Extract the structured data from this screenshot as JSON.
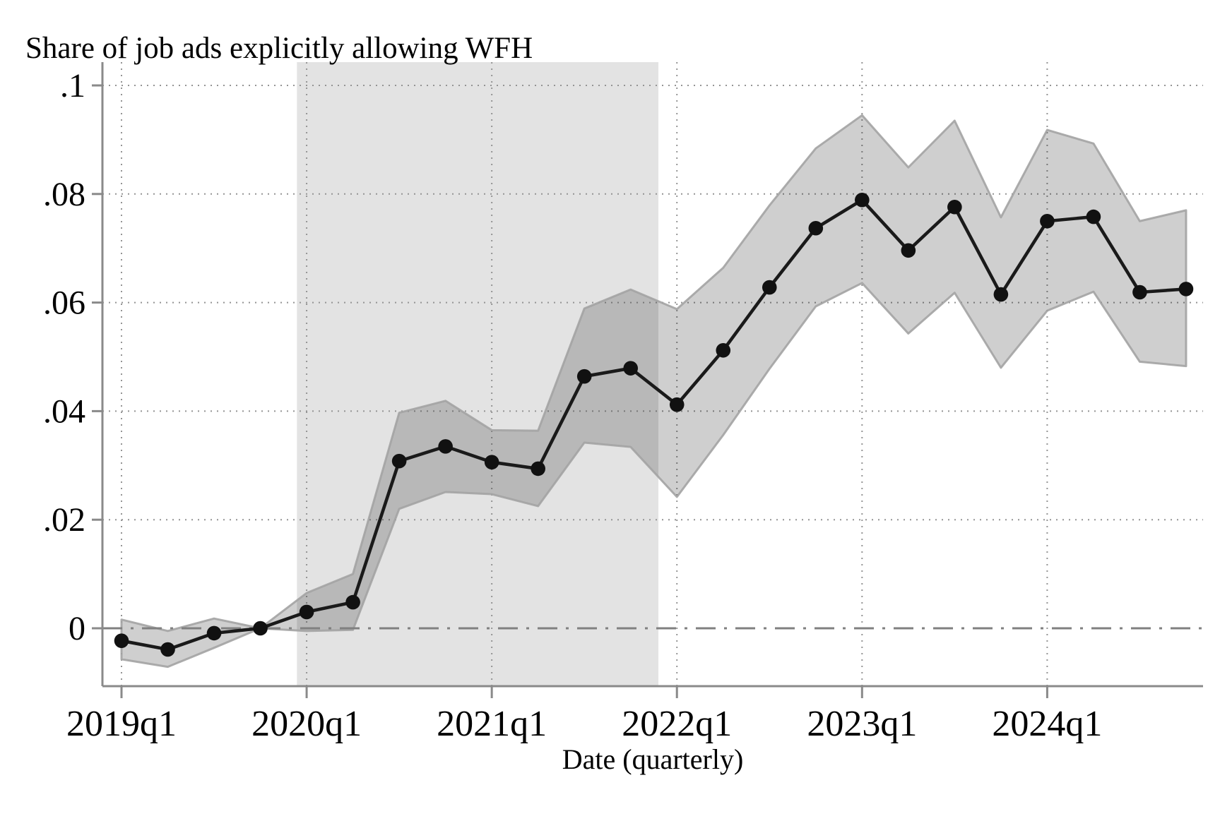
{
  "chart_data": {
    "type": "line",
    "title": "Share of job ads explicitly allowing WFH",
    "xlabel": "Date (quarterly)",
    "ylabel": "",
    "legend": "none",
    "grid": "dotted",
    "ylim": [
      -0.0107,
      0.1043
    ],
    "y_tick_labels": [
      "0",
      ".02",
      ".04",
      ".06",
      ".08",
      ".1"
    ],
    "y_tick_values": [
      0,
      0.02,
      0.04,
      0.06,
      0.08,
      0.1
    ],
    "x_tick_labels": [
      "2019q1",
      "2020q1",
      "2021q1",
      "2022q1",
      "2023q1",
      "2024q1"
    ],
    "x_tick_positions": [
      0,
      4,
      8,
      12,
      16,
      20
    ],
    "categories": [
      "2019q1",
      "2019q2",
      "2019q3",
      "2019q4",
      "2020q1",
      "2020q2",
      "2020q3",
      "2020q4",
      "2021q1",
      "2021q2",
      "2021q3",
      "2021q4",
      "2022q1",
      "2022q2",
      "2022q3",
      "2022q4",
      "2023q1",
      "2023q2",
      "2023q3",
      "2023q4",
      "2024q1",
      "2024q2",
      "2024q3",
      "2024q4"
    ],
    "series": [
      {
        "name": "point_estimate",
        "values": [
          -0.0023,
          -0.0039,
          -0.0009,
          0,
          0.003,
          0.0048,
          0.0308,
          0.0335,
          0.0306,
          0.0294,
          0.0464,
          0.0479,
          0.0412,
          0.0512,
          0.0628,
          0.0737,
          0.0789,
          0.0696,
          0.0776,
          0.0615,
          0.075,
          0.0758,
          0.0619,
          0.0625
        ]
      },
      {
        "name": "ci_upper",
        "values": [
          0.0016,
          -0.0005,
          0.0018,
          0,
          0.0065,
          0.01,
          0.0397,
          0.0419,
          0.0365,
          0.0364,
          0.0589,
          0.0624,
          0.0588,
          0.0664,
          0.0779,
          0.0884,
          0.0945,
          0.0849,
          0.0935,
          0.0757,
          0.0918,
          0.0893,
          0.075,
          0.077
        ]
      },
      {
        "name": "ci_lower",
        "values": [
          -0.0057,
          -0.0071,
          -0.0036,
          0,
          -0.0005,
          -0.0003,
          0.022,
          0.0251,
          0.0247,
          0.0225,
          0.0342,
          0.0334,
          0.0242,
          0.0356,
          0.0478,
          0.0593,
          0.0636,
          0.0543,
          0.0618,
          0.048,
          0.0585,
          0.062,
          0.0491,
          0.0483
        ]
      }
    ],
    "reference_line_y": 0,
    "shaded_region": {
      "from_quarter_index": 3.79,
      "to_quarter_index": 11.6
    },
    "colors": {
      "line": "#1a1a1a",
      "marker": "#111111",
      "ci_fill": "#000000",
      "ci_fill_opacity": 0.19,
      "ci_edge": "#a3a3a3",
      "shaded_band": "#e3e3e3",
      "grid": "#949494",
      "axis": "#8a8a8a",
      "zero_line": "#808080"
    }
  }
}
